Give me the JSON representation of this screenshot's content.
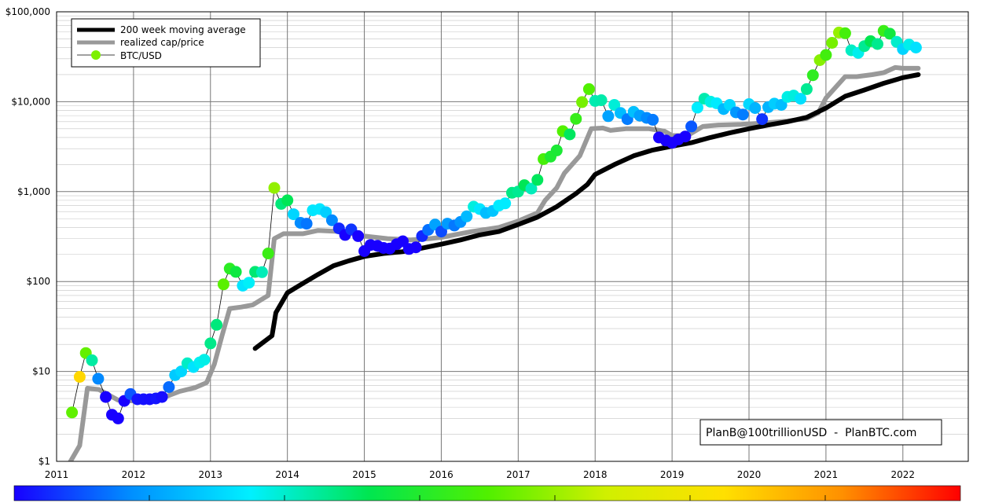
{
  "chart_data": {
    "type": "scatter",
    "title": "",
    "xlabel": "",
    "ylabel": "",
    "y_scale": "log",
    "ylim": [
      1,
      100000
    ],
    "xlim": [
      2011,
      2022.85
    ],
    "grid": true,
    "legend_position": "top-left",
    "x_ticks": [
      "2011",
      "2012",
      "2013",
      "2014",
      "2015",
      "2016",
      "2017",
      "2018",
      "2019",
      "2020",
      "2021",
      "2022"
    ],
    "y_ticks": [
      {
        "value": 1,
        "label": "$1"
      },
      {
        "value": 10,
        "label": "$10"
      },
      {
        "value": 100,
        "label": "$100"
      },
      {
        "value": 1000,
        "label": "$1,000"
      },
      {
        "value": 10000,
        "label": "$10,000"
      },
      {
        "value": 100000,
        "label": "$100,000"
      }
    ],
    "colorbar": [
      "#1800ff",
      "#0090ff",
      "#00f0ff",
      "#00e650",
      "#50f000",
      "#d0f000",
      "#ffe000",
      "#ff9000",
      "#ff0000"
    ],
    "watermark": "PlanB@100trillionUSD  -  PlanBTC.com",
    "series": [
      {
        "name": "200 week moving average",
        "kind": "line",
        "color": "#000000",
        "points": [
          [
            2013.58,
            18
          ],
          [
            2013.8,
            25
          ],
          [
            2013.85,
            45
          ],
          [
            2014.0,
            75
          ],
          [
            2014.2,
            95
          ],
          [
            2014.4,
            120
          ],
          [
            2014.6,
            150
          ],
          [
            2014.8,
            170
          ],
          [
            2015.0,
            190
          ],
          [
            2015.25,
            205
          ],
          [
            2015.5,
            215
          ],
          [
            2015.75,
            235
          ],
          [
            2016.0,
            260
          ],
          [
            2016.25,
            290
          ],
          [
            2016.5,
            330
          ],
          [
            2016.75,
            360
          ],
          [
            2017.0,
            430
          ],
          [
            2017.25,
            520
          ],
          [
            2017.5,
            680
          ],
          [
            2017.75,
            950
          ],
          [
            2017.9,
            1200
          ],
          [
            2018.0,
            1550
          ],
          [
            2018.25,
            2000
          ],
          [
            2018.5,
            2500
          ],
          [
            2018.75,
            2900
          ],
          [
            2019.0,
            3200
          ],
          [
            2019.25,
            3500
          ],
          [
            2019.5,
            4000
          ],
          [
            2019.75,
            4500
          ],
          [
            2020.0,
            5000
          ],
          [
            2020.25,
            5500
          ],
          [
            2020.5,
            6000
          ],
          [
            2020.75,
            6700
          ],
          [
            2021.0,
            8500
          ],
          [
            2021.25,
            11500
          ],
          [
            2021.5,
            13500
          ],
          [
            2021.75,
            16000
          ],
          [
            2022.0,
            18500
          ],
          [
            2022.2,
            20000
          ]
        ]
      },
      {
        "name": "realized cap/price",
        "kind": "line",
        "color": "#999999",
        "points": [
          [
            2011.15,
            0.9
          ],
          [
            2011.3,
            1.5
          ],
          [
            2011.4,
            6.5
          ],
          [
            2011.55,
            6.3
          ],
          [
            2011.8,
            4.8
          ],
          [
            2012.0,
            4.7
          ],
          [
            2012.3,
            4.8
          ],
          [
            2012.6,
            6.0
          ],
          [
            2012.8,
            6.6
          ],
          [
            2012.95,
            7.5
          ],
          [
            2013.05,
            12
          ],
          [
            2013.15,
            25
          ],
          [
            2013.25,
            50
          ],
          [
            2013.4,
            52
          ],
          [
            2013.55,
            55
          ],
          [
            2013.75,
            70
          ],
          [
            2013.83,
            300
          ],
          [
            2013.95,
            340
          ],
          [
            2014.2,
            340
          ],
          [
            2014.4,
            370
          ],
          [
            2014.7,
            360
          ],
          [
            2015.0,
            320
          ],
          [
            2015.3,
            300
          ],
          [
            2015.6,
            290
          ],
          [
            2015.85,
            300
          ],
          [
            2016.0,
            310
          ],
          [
            2016.4,
            360
          ],
          [
            2016.75,
            400
          ],
          [
            2017.0,
            470
          ],
          [
            2017.25,
            580
          ],
          [
            2017.35,
            800
          ],
          [
            2017.5,
            1100
          ],
          [
            2017.6,
            1600
          ],
          [
            2017.8,
            2500
          ],
          [
            2017.95,
            5000
          ],
          [
            2018.1,
            5100
          ],
          [
            2018.2,
            4800
          ],
          [
            2018.4,
            5000
          ],
          [
            2018.7,
            5000
          ],
          [
            2018.9,
            4700
          ],
          [
            2019.0,
            4200
          ],
          [
            2019.2,
            4200
          ],
          [
            2019.4,
            5300
          ],
          [
            2019.6,
            5500
          ],
          [
            2019.9,
            5600
          ],
          [
            2020.2,
            5800
          ],
          [
            2020.5,
            6100
          ],
          [
            2020.75,
            6500
          ],
          [
            2020.9,
            7500
          ],
          [
            2021.0,
            11000
          ],
          [
            2021.25,
            19000
          ],
          [
            2021.4,
            19000
          ],
          [
            2021.6,
            20000
          ],
          [
            2021.75,
            21000
          ],
          [
            2021.9,
            24000
          ],
          [
            2022.0,
            23500
          ],
          [
            2022.2,
            23500
          ]
        ]
      },
      {
        "name": "BTC/USD",
        "kind": "scatter",
        "line_color": "#000000",
        "points": [
          [
            2011.2,
            3.5
          ],
          [
            2011.3,
            8.7
          ],
          [
            2011.38,
            16
          ],
          [
            2011.46,
            13.3
          ],
          [
            2011.54,
            8.3
          ],
          [
            2011.64,
            5.2
          ],
          [
            2011.72,
            3.3
          ],
          [
            2011.8,
            3
          ],
          [
            2011.88,
            4.7
          ],
          [
            2011.96,
            5.6
          ],
          [
            2012.05,
            4.9
          ],
          [
            2012.13,
            4.9
          ],
          [
            2012.21,
            4.9
          ],
          [
            2012.29,
            5
          ],
          [
            2012.37,
            5.2
          ],
          [
            2012.46,
            6.7
          ],
          [
            2012.54,
            9.1
          ],
          [
            2012.62,
            10
          ],
          [
            2012.7,
            12.3
          ],
          [
            2012.78,
            11.2
          ],
          [
            2012.86,
            12.6
          ],
          [
            2012.92,
            13.5
          ],
          [
            2013.0,
            20.5
          ],
          [
            2013.08,
            33
          ],
          [
            2013.17,
            93
          ],
          [
            2013.25,
            139
          ],
          [
            2013.33,
            128
          ],
          [
            2013.42,
            90
          ],
          [
            2013.5,
            97
          ],
          [
            2013.58,
            128
          ],
          [
            2013.67,
            127
          ],
          [
            2013.75,
            205
          ],
          [
            2013.83,
            1100
          ],
          [
            2013.92,
            730
          ],
          [
            2014.0,
            800
          ],
          [
            2014.08,
            560
          ],
          [
            2014.17,
            450
          ],
          [
            2014.25,
            440
          ],
          [
            2014.33,
            620
          ],
          [
            2014.42,
            640
          ],
          [
            2014.5,
            590
          ],
          [
            2014.58,
            480
          ],
          [
            2014.67,
            390
          ],
          [
            2014.75,
            330
          ],
          [
            2014.83,
            380
          ],
          [
            2014.92,
            320
          ],
          [
            2015.0,
            218
          ],
          [
            2015.08,
            255
          ],
          [
            2015.17,
            250
          ],
          [
            2015.25,
            236
          ],
          [
            2015.33,
            233
          ],
          [
            2015.42,
            260
          ],
          [
            2015.5,
            280
          ],
          [
            2015.58,
            230
          ],
          [
            2015.67,
            240
          ],
          [
            2015.75,
            320
          ],
          [
            2015.83,
            375
          ],
          [
            2015.92,
            430
          ],
          [
            2016.0,
            360
          ],
          [
            2016.08,
            440
          ],
          [
            2016.17,
            420
          ],
          [
            2016.25,
            460
          ],
          [
            2016.33,
            530
          ],
          [
            2016.42,
            680
          ],
          [
            2016.5,
            640
          ],
          [
            2016.58,
            580
          ],
          [
            2016.67,
            610
          ],
          [
            2016.75,
            700
          ],
          [
            2016.83,
            740
          ],
          [
            2016.92,
            970
          ],
          [
            2017.0,
            1000
          ],
          [
            2017.08,
            1180
          ],
          [
            2017.17,
            1080
          ],
          [
            2017.25,
            1350
          ],
          [
            2017.33,
            2300
          ],
          [
            2017.42,
            2450
          ],
          [
            2017.5,
            2870
          ],
          [
            2017.58,
            4700
          ],
          [
            2017.67,
            4330
          ],
          [
            2017.75,
            6450
          ],
          [
            2017.83,
            9900
          ],
          [
            2017.92,
            13800
          ],
          [
            2018.0,
            10200
          ],
          [
            2018.08,
            10400
          ],
          [
            2018.17,
            6900
          ],
          [
            2018.25,
            9200
          ],
          [
            2018.33,
            7500
          ],
          [
            2018.42,
            6400
          ],
          [
            2018.5,
            7700
          ],
          [
            2018.58,
            7000
          ],
          [
            2018.67,
            6600
          ],
          [
            2018.75,
            6300
          ],
          [
            2018.83,
            4000
          ],
          [
            2018.92,
            3700
          ],
          [
            2019.0,
            3500
          ],
          [
            2019.08,
            3800
          ],
          [
            2019.17,
            4100
          ],
          [
            2019.25,
            5300
          ],
          [
            2019.33,
            8600
          ],
          [
            2019.42,
            10800
          ],
          [
            2019.5,
            10000
          ],
          [
            2019.58,
            9600
          ],
          [
            2019.67,
            8300
          ],
          [
            2019.75,
            9200
          ],
          [
            2019.83,
            7600
          ],
          [
            2019.92,
            7200
          ],
          [
            2020.0,
            9400
          ],
          [
            2020.08,
            8500
          ],
          [
            2020.17,
            6400
          ],
          [
            2020.25,
            8700
          ],
          [
            2020.33,
            9500
          ],
          [
            2020.42,
            9200
          ],
          [
            2020.5,
            11300
          ],
          [
            2020.58,
            11700
          ],
          [
            2020.67,
            10800
          ],
          [
            2020.75,
            13800
          ],
          [
            2020.83,
            19700
          ],
          [
            2020.92,
            29000
          ],
          [
            2021.0,
            33100
          ],
          [
            2021.08,
            45200
          ],
          [
            2021.17,
            58800
          ],
          [
            2021.25,
            57700
          ],
          [
            2021.33,
            37300
          ],
          [
            2021.42,
            35000
          ],
          [
            2021.5,
            41500
          ],
          [
            2021.58,
            47100
          ],
          [
            2021.67,
            43800
          ],
          [
            2021.75,
            61300
          ],
          [
            2021.83,
            57000
          ],
          [
            2021.92,
            46300
          ],
          [
            2022.0,
            38500
          ],
          [
            2022.08,
            43200
          ],
          [
            2022.17,
            40000
          ]
        ]
      }
    ]
  }
}
